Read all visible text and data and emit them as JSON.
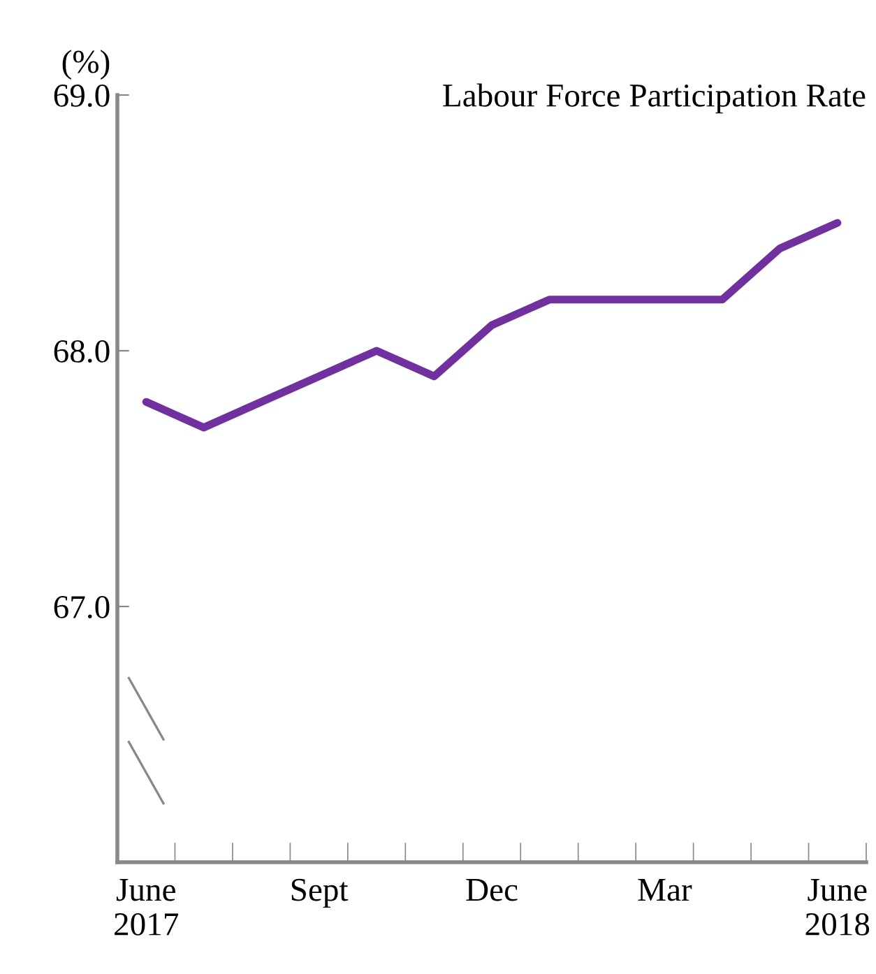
{
  "chart_data": {
    "type": "line",
    "title": "Labour Force Participation Rate",
    "ylabel": "(%)",
    "categories": [
      "June\n2017",
      null,
      null,
      "Sept",
      null,
      null,
      "Dec",
      null,
      null,
      "Mar",
      null,
      null,
      "June\n2018"
    ],
    "series": [
      {
        "color": "#7030a0",
        "values": [
          67.8,
          67.7,
          67.8,
          67.9,
          68.0,
          67.9,
          68.1,
          68.2,
          68.2,
          68.2,
          68.2,
          68.4,
          68.5
        ]
      }
    ],
    "ylim": [
      66.0,
      69.0
    ],
    "yticks": [
      {
        "value": 66.0,
        "label": null
      },
      {
        "value": 67.0,
        "label": "67.0"
      },
      {
        "value": 68.0,
        "label": "68.0"
      },
      {
        "value": 69.0,
        "label": "69.0"
      }
    ],
    "grid": false,
    "legend": false,
    "marker": "none",
    "line_style": "solid"
  }
}
